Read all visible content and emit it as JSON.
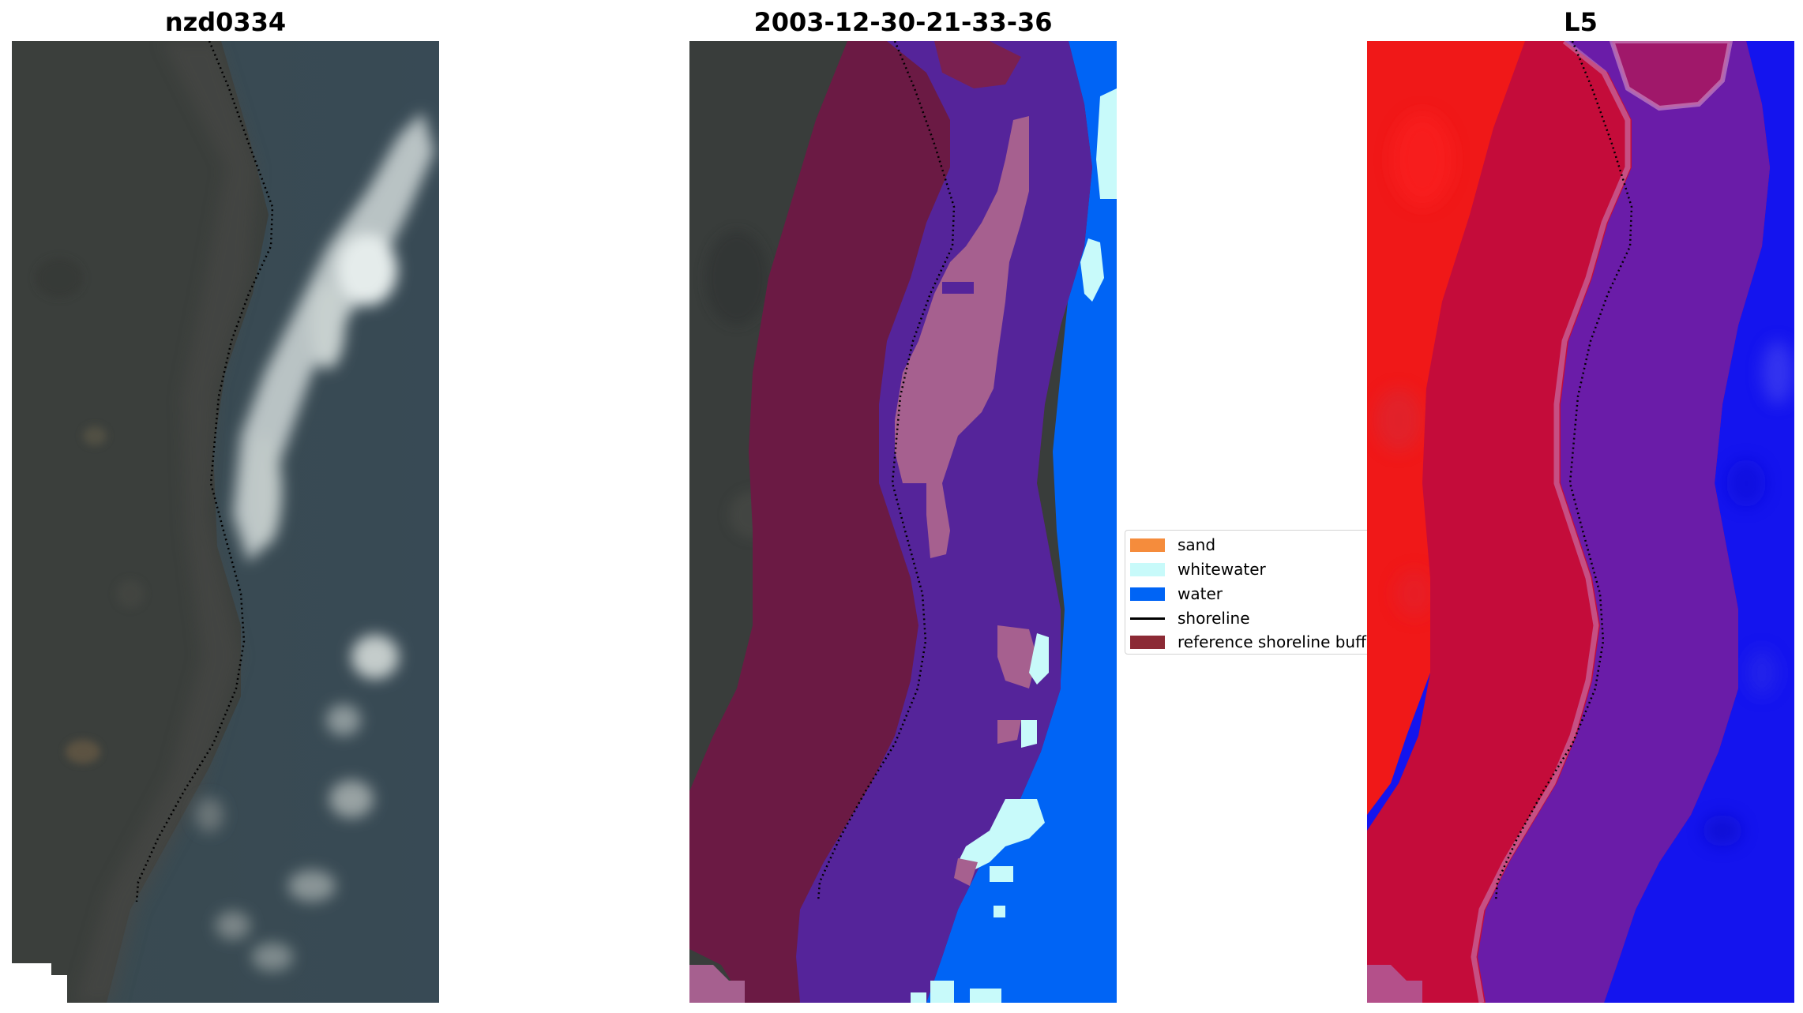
{
  "panels": [
    {
      "title": "nzd0334"
    },
    {
      "title": "2003-12-30-21-33-36"
    },
    {
      "title": "L5"
    }
  ],
  "legend": {
    "items": [
      {
        "label": "sand",
        "color": "#f58c3c",
        "kind": "patch"
      },
      {
        "label": "whitewater",
        "color": "#c8fafa",
        "kind": "patch"
      },
      {
        "label": "water",
        "color": "#0064f5",
        "kind": "patch"
      },
      {
        "label": "shoreline",
        "color": "#000000",
        "kind": "line"
      },
      {
        "label": "reference shoreline buffer",
        "color": "#8c2a35",
        "kind": "patch"
      }
    ]
  },
  "colors": {
    "land_rgb": "#3a3e3b",
    "sea_rgb": "#38474f",
    "buffer": "#6b1a44",
    "water_class": "#0064f5",
    "whitewater_class": "#c8fafa",
    "ndwi_land": "#f51018",
    "ndwi_water": "#1414f0"
  }
}
